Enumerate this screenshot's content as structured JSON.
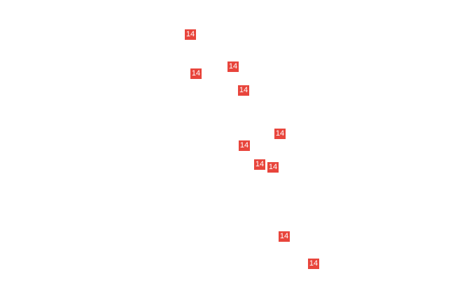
{
  "map": {
    "marker_color": "#e8453c",
    "markers": [
      {
        "label": "14"
      },
      {
        "label": "14"
      },
      {
        "label": "14"
      },
      {
        "label": "14"
      },
      {
        "label": "14"
      },
      {
        "label": "14"
      },
      {
        "label": "14"
      },
      {
        "label": "14"
      },
      {
        "label": "14"
      },
      {
        "label": "14"
      }
    ]
  }
}
